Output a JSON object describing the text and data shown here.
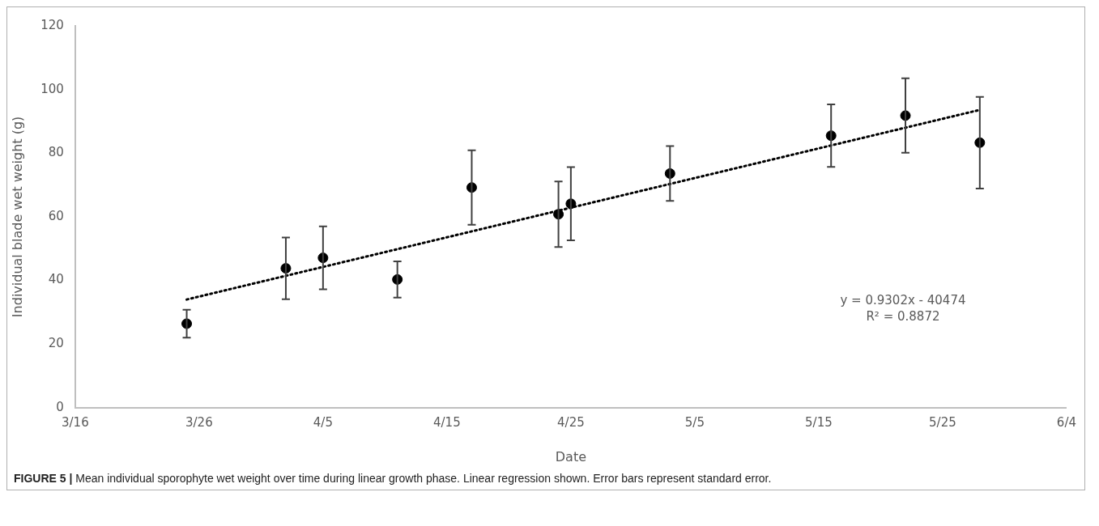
{
  "chart_data": {
    "type": "scatter",
    "xlabel": "Date",
    "ylabel": "Individual blade wet weight (g)",
    "x": [
      "--03-25",
      "--04-02",
      "--04-05",
      "--04-11",
      "--04-17",
      "--04-24",
      "--04-25",
      "--05-03",
      "--05-16",
      "--05-22",
      "--05-28"
    ],
    "series": [
      {
        "color": "#000000",
        "marker": "circle",
        "values": [
          26.4,
          43.8,
          47.1,
          40.3,
          69.2,
          60.8,
          64.1,
          73.6,
          85.5,
          91.8,
          83.3
        ],
        "errors": [
          4.4,
          9.7,
          9.9,
          5.7,
          11.7,
          10.3,
          11.5,
          8.6,
          9.8,
          11.7,
          14.4
        ]
      },
      {
        "type": "line",
        "color": "#000000",
        "marker": "none",
        "line_style": "dotted",
        "x": [
          "--03-25",
          "--05-28"
        ],
        "values": [
          34.0,
          93.6
        ]
      }
    ],
    "xlim": [
      "--03-16",
      "--06-04"
    ],
    "xticks": [
      {
        "value": "--03-16",
        "label": "3/16"
      },
      {
        "value": "--03-26",
        "label": "3/26"
      },
      {
        "value": "--04-05",
        "label": "4/5"
      },
      {
        "value": "--04-15",
        "label": "4/15"
      },
      {
        "value": "--04-25",
        "label": "4/25"
      },
      {
        "value": "--05-05",
        "label": "5/5"
      },
      {
        "value": "--05-15",
        "label": "5/15"
      },
      {
        "value": "--05-25",
        "label": "5/25"
      },
      {
        "value": "--06-04",
        "label": "6/4"
      }
    ],
    "ylim": [
      0,
      120
    ],
    "yticks": [
      0,
      20,
      40,
      60,
      80,
      100,
      120
    ],
    "grid": false,
    "legend": false,
    "annotations": [
      "y = 0.9302x - 40474\nR² = 0.8872",
      "FIGURE 5 | Mean individual sporophyte wet weight over time during linear growth phase. Linear regression shown. Error bars represent standard error."
    ]
  }
}
